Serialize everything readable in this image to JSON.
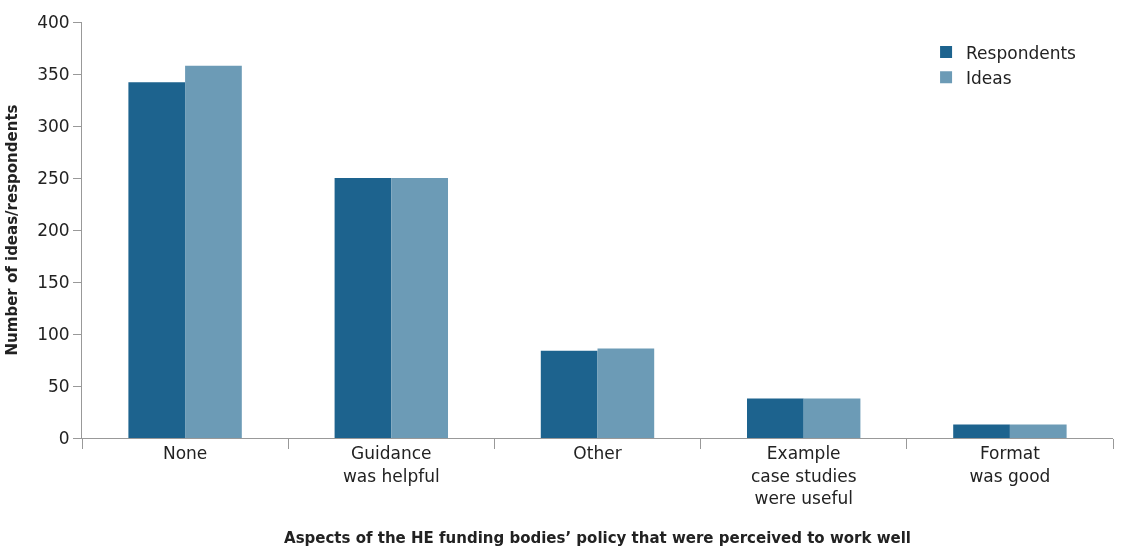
{
  "chart_data": {
    "type": "bar",
    "xlabel": "Aspects of the HE funding bodies’ policy that were perceived to work well",
    "ylabel": "Number of ideas/respondents",
    "categories": [
      "None",
      "Guidance\nwas helpful",
      "Other",
      "Example\ncase studies\nwere useful",
      "Format\nwas good"
    ],
    "series": [
      {
        "name": "Respondents",
        "color": "#1d638e",
        "values": [
          342,
          250,
          84,
          38,
          13
        ]
      },
      {
        "name": "Ideas",
        "color": "#6c9bb6",
        "values": [
          358,
          250,
          86,
          38,
          13
        ]
      }
    ],
    "ylim": [
      0,
      400
    ],
    "yticks": [
      0,
      50,
      100,
      150,
      200,
      250,
      300,
      350,
      400
    ],
    "legend": "top right"
  }
}
